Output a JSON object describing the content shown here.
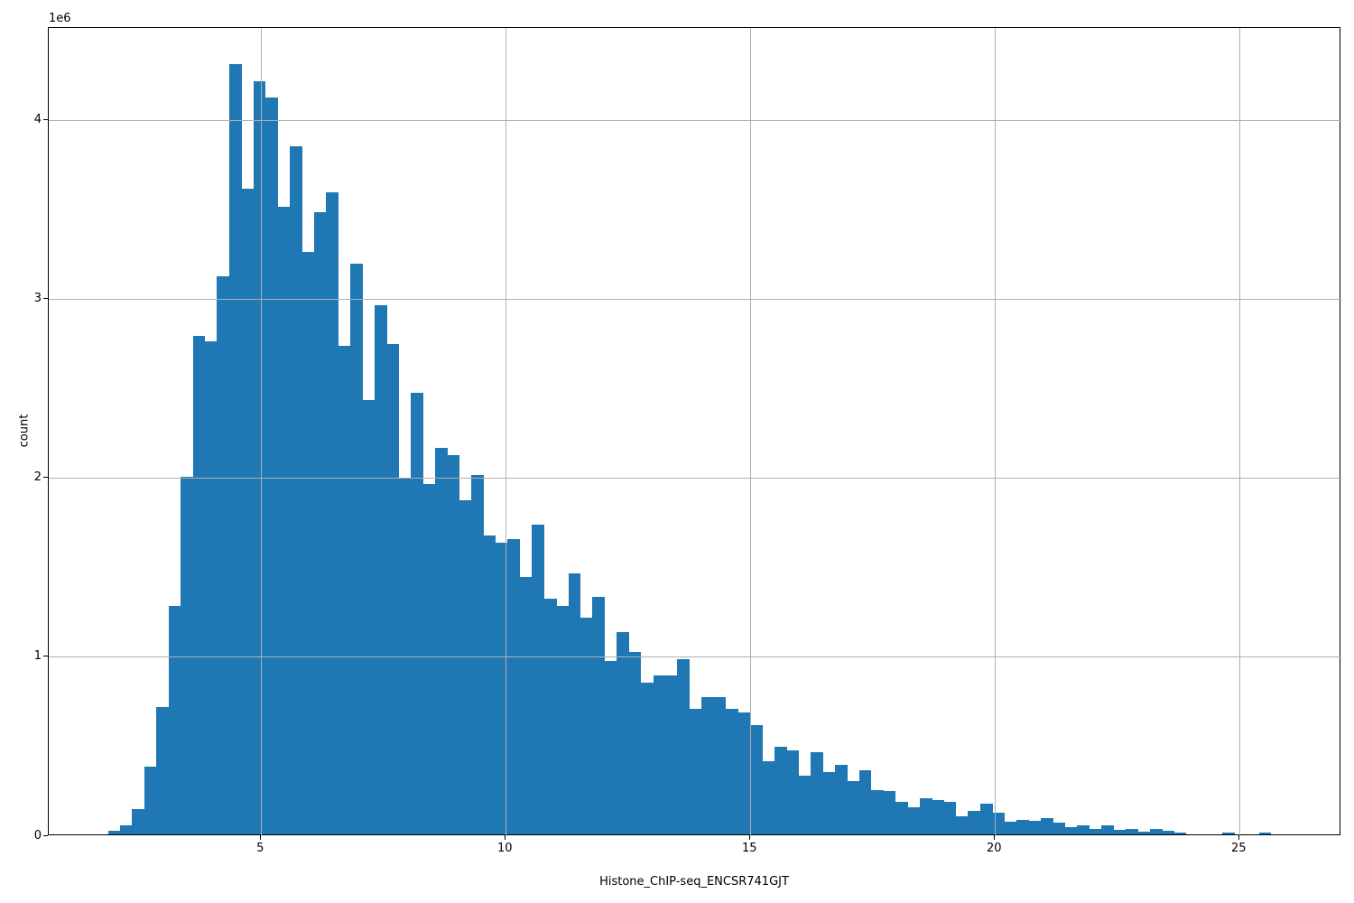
{
  "chart_data": {
    "type": "bar",
    "subtype": "histogram",
    "title": "",
    "xlabel": "Histone_ChIP-seq_ENCSR741GJT",
    "ylabel": "count",
    "y_offset_text": "1e6",
    "bar_color": "#1f77b4",
    "grid_color": "#b0b0b0",
    "grid": true,
    "legend": false,
    "xlim": [
      0.66,
      27.08
    ],
    "ylim": [
      0,
      4520000
    ],
    "x_ticks": [
      5,
      10,
      15,
      20,
      25
    ],
    "x_tick_labels": [
      "5",
      "10",
      "15",
      "20",
      "25"
    ],
    "y_ticks": [
      0,
      1000000,
      2000000,
      3000000,
      4000000
    ],
    "y_tick_labels": [
      "0",
      "1",
      "2",
      "3",
      "4"
    ],
    "bin_start": 1.87,
    "bin_width": 0.2476,
    "counts": [
      20000,
      50000,
      140000,
      380000,
      710000,
      1280000,
      2000000,
      2790000,
      2760000,
      3120000,
      4310000,
      3610000,
      4210000,
      4120000,
      3510000,
      3850000,
      3260000,
      3480000,
      3590000,
      2730000,
      3190000,
      2430000,
      2960000,
      2740000,
      1990000,
      2470000,
      1960000,
      2160000,
      2120000,
      1870000,
      2010000,
      1670000,
      1630000,
      1650000,
      1440000,
      1730000,
      1320000,
      1280000,
      1460000,
      1210000,
      1330000,
      970000,
      1130000,
      1020000,
      850000,
      890000,
      890000,
      980000,
      700000,
      770000,
      770000,
      700000,
      680000,
      610000,
      410000,
      490000,
      470000,
      330000,
      460000,
      350000,
      390000,
      300000,
      360000,
      250000,
      240000,
      180000,
      150000,
      200000,
      190000,
      180000,
      100000,
      130000,
      170000,
      120000,
      70000,
      80000,
      75000,
      90000,
      65000,
      42000,
      50000,
      32000,
      49000,
      24000,
      29000,
      15000,
      32000,
      22000,
      10000,
      0,
      0,
      0,
      10000,
      0,
      0,
      10000
    ]
  }
}
